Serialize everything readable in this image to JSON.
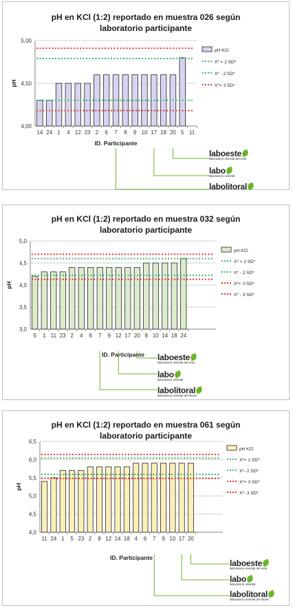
{
  "colors": {
    "sd2": "#3cb371",
    "sd3": "#e03030",
    "gold": "#f0c419",
    "axis": "#808080",
    "grid": "#d0d0d0",
    "logo_green": "#6bb42a"
  },
  "logos": [
    "laboeste",
    "labo",
    "labolitoral"
  ],
  "chart_data": [
    {
      "type": "bar",
      "title": "pH en KCl (1:2) reportado en muestra 026 según laboratorio participante",
      "title_lines": [
        "pH en KCl (1:2) reportado en muestra 026 según",
        "laboratorio participante"
      ],
      "xlabel": "ID. Participante",
      "ylabel": "pH",
      "ylim": [
        4.0,
        5.0
      ],
      "yticks": [
        "4,00",
        "4,50",
        "5,00"
      ],
      "bar_color": "#d8d4f0",
      "categories": [
        "14",
        "24",
        "1",
        "4",
        "12",
        "23",
        "2",
        "6",
        "7",
        "8",
        "9",
        "10",
        "17",
        "18",
        "20",
        "5",
        "11"
      ],
      "series": [
        {
          "name": "pH KCl",
          "values": [
            4.3,
            4.3,
            4.5,
            4.5,
            4.5,
            4.5,
            4.6,
            4.6,
            4.6,
            4.6,
            4.6,
            4.6,
            4.6,
            4.6,
            4.6,
            4.8,
            null
          ]
        }
      ],
      "reference_lines": [
        {
          "name": "X* + 2 SD*",
          "value": 4.79,
          "kind": "sd2"
        },
        {
          "name": "X* - 2 SD*",
          "value": 4.3,
          "kind": "sd2"
        },
        {
          "name": "X*+ 3 SD*",
          "value": 4.91,
          "kind": "sd3"
        },
        {
          "name": "",
          "value": 4.18,
          "kind": "sd3"
        }
      ],
      "legend": [
        {
          "label": "pH KCl",
          "kind": "bar"
        },
        {
          "label": "X* + 2 SD*",
          "kind": "sd2"
        },
        {
          "label": "X* - 2 SD*",
          "kind": "sd2"
        },
        {
          "label": "X*+ 3 SD*",
          "kind": "sd3"
        }
      ],
      "grid": true,
      "legend_position": "right"
    },
    {
      "type": "bar",
      "title": "pH en KCl (1:2) reportado en muestra 032 según laboratorio participante",
      "title_lines": [
        "pH en KCl (1:2) reportado en muestra 032 según",
        "laboratorio participante"
      ],
      "xlabel": "ID. Participante",
      "ylabel": "pH",
      "ylim": [
        3.0,
        5.0
      ],
      "yticks": [
        "3,0",
        "3,5",
        "4,0",
        "4,5",
        "5,0"
      ],
      "bar_color": "#dcebcc",
      "categories": [
        "5",
        "1",
        "11",
        "23",
        "2",
        "4",
        "6",
        "7",
        "9",
        "12",
        "17",
        "20",
        "8",
        "10",
        "14",
        "18",
        "24"
      ],
      "series": [
        {
          "name": "pH KCl",
          "values": [
            4.2,
            4.3,
            4.3,
            4.3,
            4.4,
            4.4,
            4.4,
            4.4,
            4.4,
            4.4,
            4.4,
            4.4,
            4.5,
            4.5,
            4.5,
            4.5,
            4.6
          ]
        }
      ],
      "reference_lines": [
        {
          "name": "X* + 2 SD*",
          "value": 4.6,
          "kind": "sd2"
        },
        {
          "name": "X* - 2 SD*",
          "value": 4.22,
          "kind": "sd2"
        },
        {
          "name": "X*+ 3 SD*",
          "value": 4.7,
          "kind": "sd3"
        },
        {
          "name": "X* - 3 SD*",
          "value": 4.13,
          "kind": "sd3"
        }
      ],
      "legend": [
        {
          "label": "pH KCl",
          "kind": "bar"
        },
        {
          "label": "X* + 2 SD*",
          "kind": "sd2"
        },
        {
          "label": "X* - 2 SD*",
          "kind": "sd2"
        },
        {
          "label": "X*+ 3 SD*",
          "kind": "sd3"
        },
        {
          "label": "X* - 3 SD*",
          "kind": "sd3"
        }
      ],
      "grid": true,
      "legend_position": "right"
    },
    {
      "type": "bar",
      "title": "pH en KCl (1:2) reportado en muestra 061 según laboratorio participante",
      "title_lines": [
        "pH en KCl (1:2) reportado en muestra 061 según",
        "laboratorio participante"
      ],
      "xlabel": "ID. Participante",
      "ylabel": "pH",
      "ylim": [
        4.0,
        6.5
      ],
      "yticks": [
        "4,0",
        "4,5",
        "5,0",
        "5,5",
        "6,0",
        "6,5"
      ],
      "bar_color": "#fbefb9",
      "categories": [
        "11",
        "24",
        "1",
        "5",
        "23",
        "2",
        "8",
        "12",
        "14",
        "18",
        "4",
        "6",
        "7",
        "9",
        "10",
        "17",
        "20"
      ],
      "series": [
        {
          "name": "pH KCl",
          "values": [
            5.4,
            5.5,
            5.7,
            5.7,
            5.7,
            5.8,
            5.8,
            5.8,
            5.8,
            5.8,
            5.9,
            5.9,
            5.9,
            5.9,
            5.9,
            5.9,
            5.9
          ]
        }
      ],
      "reference_lines": [
        {
          "name": "X*+ 2 SD*",
          "value": 6.04,
          "kind": "sd2"
        },
        {
          "name": "X*- 2 SD*",
          "value": 5.59,
          "kind": "sd2"
        },
        {
          "name": "X*+ 3 SD*",
          "value": 6.14,
          "kind": "sd3"
        },
        {
          "name": "X*- 3 SD*",
          "value": 5.48,
          "kind": "sd3"
        }
      ],
      "legend": [
        {
          "label": "pH KCl",
          "kind": "bar"
        },
        {
          "label": "X*+ 2 SD*",
          "kind": "sd2"
        },
        {
          "label": "X*- 2 SD*",
          "kind": "sd2"
        },
        {
          "label": "X*+ 3 SD*",
          "kind": "sd3"
        },
        {
          "label": "X*- 3 SD*",
          "kind": "sd3"
        }
      ],
      "grid": true,
      "legend_position": "right"
    }
  ]
}
